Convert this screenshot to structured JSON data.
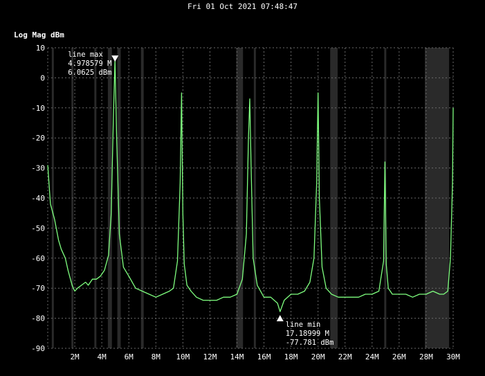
{
  "header": {
    "timestamp": "Fri 01 Oct 2021 07:48:47"
  },
  "chart_data": {
    "type": "line",
    "ylabel": "Log Mag dBm",
    "xlabel": "",
    "xlim": [
      0,
      30
    ],
    "ylim": [
      -90,
      10
    ],
    "x_unit": "MHz",
    "x_ticks": [
      2,
      4,
      6,
      8,
      10,
      12,
      14,
      16,
      18,
      20,
      22,
      24,
      26,
      28,
      30
    ],
    "x_tick_labels": [
      "2M",
      "4M",
      "6M",
      "8M",
      "10M",
      "12M",
      "14M",
      "16M",
      "18M",
      "20M",
      "22M",
      "24M",
      "26M",
      "28M",
      "30M"
    ],
    "y_ticks": [
      10,
      0,
      -10,
      -20,
      -30,
      -40,
      -50,
      -60,
      -70,
      -80,
      -90
    ],
    "y_tick_labels": [
      "10",
      "0",
      "-10",
      "-20",
      "-30",
      "-40",
      "-50",
      "-60",
      "-70",
      "-80",
      "-90"
    ],
    "grid": true,
    "line_color": "#7fff7f",
    "band_color": "#2a2a2a",
    "shaded_bands": [
      [
        0.3,
        0.45
      ],
      [
        1.75,
        1.9
      ],
      [
        3.45,
        3.6
      ],
      [
        4.45,
        4.75
      ],
      [
        5.15,
        5.4
      ],
      [
        6.9,
        7.1
      ],
      [
        13.95,
        14.45
      ],
      [
        15.25,
        15.4
      ],
      [
        20.9,
        21.45
      ],
      [
        24.9,
        25.05
      ],
      [
        27.9,
        29.7
      ]
    ],
    "series": [
      {
        "x": [
          0,
          0.2,
          0.5,
          0.8,
          1.0,
          1.3,
          1.5,
          1.8,
          2.0,
          2.2,
          2.5,
          2.8,
          3.0,
          3.3,
          3.6,
          3.9,
          4.2,
          4.5,
          4.7,
          4.85,
          4.978579,
          5.1,
          5.3,
          5.6,
          6.0,
          6.5,
          7.0,
          7.5,
          8.0,
          8.5,
          9.0,
          9.3,
          9.6,
          9.8,
          9.9,
          10.0,
          10.1,
          10.3,
          10.6,
          11.0,
          11.5,
          12.0,
          12.5,
          13.0,
          13.5,
          14.0,
          14.4,
          14.7,
          14.85,
          14.95,
          15.05,
          15.2,
          15.5,
          16.0,
          16.5,
          17.0,
          17.18999,
          17.5,
          18.0,
          18.5,
          19.0,
          19.4,
          19.7,
          19.9,
          20.0,
          20.1,
          20.3,
          20.6,
          21.0,
          21.5,
          22.0,
          22.5,
          23.0,
          23.5,
          24.0,
          24.5,
          24.85,
          24.95,
          25.05,
          25.2,
          25.5,
          26.0,
          26.5,
          27.0,
          27.5,
          28.0,
          28.5,
          29.0,
          29.3,
          29.6,
          29.8,
          29.95,
          30.0
        ],
        "y": [
          -29,
          -42,
          -47,
          -54,
          -57,
          -60,
          -64,
          -69,
          -71,
          -70,
          -69,
          -68,
          -69,
          -67,
          -67,
          -66,
          -64,
          -59,
          -45,
          -15,
          6.06,
          -20,
          -52,
          -63,
          -66,
          -70,
          -71,
          -72,
          -73,
          -72,
          -71,
          -70,
          -61,
          -35,
          -5,
          -45,
          -62,
          -69,
          -71,
          -73,
          -74,
          -74,
          -74,
          -73,
          -73,
          -72,
          -67,
          -52,
          -20,
          -7,
          -30,
          -60,
          -69,
          -73,
          -73,
          -75,
          -77.781,
          -74,
          -72,
          -72,
          -71,
          -68,
          -60,
          -35,
          -5,
          -40,
          -63,
          -70,
          -72,
          -73,
          -73,
          -73,
          -73,
          -72,
          -72,
          -71,
          -61,
          -28,
          -62,
          -70,
          -72,
          -72,
          -72,
          -73,
          -72,
          -72,
          -71,
          -72,
          -72,
          -71,
          -60,
          -35,
          -10
        ]
      }
    ],
    "markers": [
      {
        "name": "line max",
        "freq": "4.978579 M",
        "level": "6.0625 dBm",
        "x": 4.978579,
        "y": 6.0625
      },
      {
        "name": "line min",
        "freq": "17.18999 M",
        "level": "-77.781 dBm",
        "x": 17.18999,
        "y": -77.781
      }
    ]
  }
}
